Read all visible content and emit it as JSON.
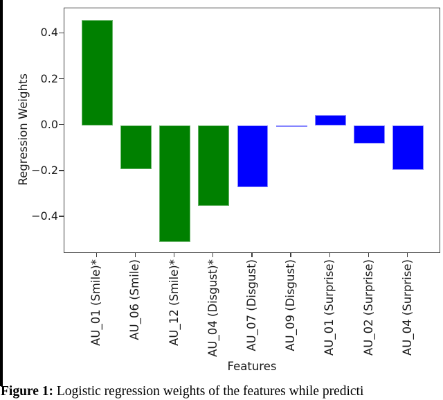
{
  "figure": {
    "caption_bold": "Figure 1:",
    "caption_rest": " Logistic regression weights of the features while predicti"
  },
  "chart_data": {
    "type": "bar",
    "title": "",
    "xlabel": "Features",
    "ylabel": "Regression Weights",
    "categories": [
      "AU_01 (Smile)*",
      "AU_06 (Smile)",
      "AU_12 (Smile)*",
      "AU_04 (Disgust)*",
      "AU_07 (Disgust)",
      "AU_09 (Disgust)",
      "AU_01 (Surprise)",
      "AU_02 (Surprise)",
      "AU_04 (Surprise)"
    ],
    "values": [
      0.46,
      -0.19,
      -0.51,
      -0.35,
      -0.27,
      -0.005,
      0.045,
      -0.08,
      -0.195
    ],
    "bar_colors": [
      "#008000",
      "#008000",
      "#008000",
      "#008000",
      "#0000ff",
      "#0000ff",
      "#0000ff",
      "#0000ff",
      "#0000ff"
    ],
    "bar_edge_colors": [
      "#6ab56a",
      "#6ab56a",
      "#6ab56a",
      "#6ab56a",
      "#8585ff",
      "#8585ff",
      "#8585ff",
      "#8585ff",
      "#8585ff"
    ],
    "yticks": [
      0.4,
      0.2,
      0.0,
      -0.2,
      -0.4
    ],
    "ylim": [
      -0.56,
      0.51
    ],
    "grid": false,
    "legend": null
  }
}
